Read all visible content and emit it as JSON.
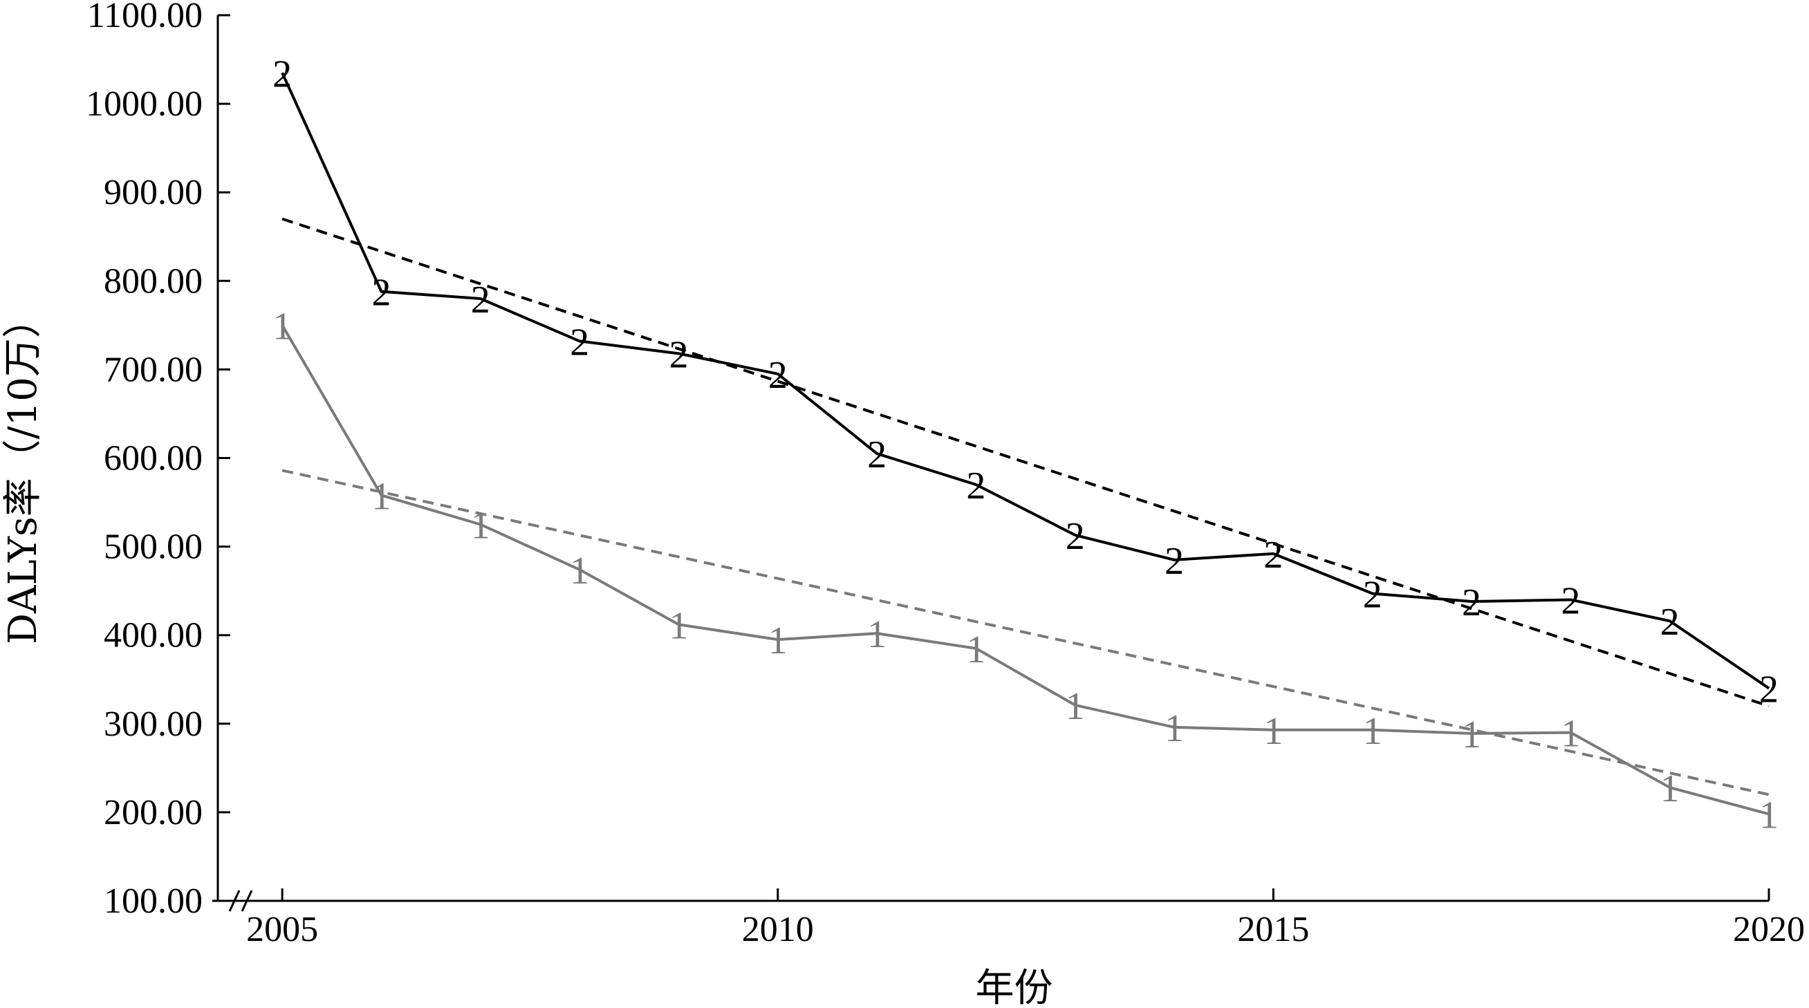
{
  "chart_data": {
    "type": "line",
    "xlabel": "年份",
    "ylabel": "DALYs率（/10万）",
    "x": [
      2005,
      2006,
      2007,
      2008,
      2009,
      2010,
      2011,
      2012,
      2013,
      2014,
      2015,
      2016,
      2017,
      2018,
      2019,
      2020
    ],
    "x_ticks": [
      "2005",
      "2010",
      "2015",
      "2020"
    ],
    "y_ticks": [
      "100.00",
      "200.00",
      "300.00",
      "400.00",
      "500.00",
      "600.00",
      "700.00",
      "800.00",
      "900.00",
      "1000.00",
      "1100.00"
    ],
    "xlim": [
      2004.35,
      2020
    ],
    "ylim": [
      100,
      1100
    ],
    "y_axis_break": true,
    "grid": false,
    "series": [
      {
        "marker": "2",
        "color": "#000000",
        "values": [
          1035,
          788,
          780,
          732,
          718,
          695,
          605,
          570,
          513,
          485,
          492,
          447,
          438,
          440,
          416,
          340
        ],
        "trend": {
          "style": "dashed",
          "start": 870,
          "end": 320
        }
      },
      {
        "marker": "1",
        "color": "#7a7a7a",
        "values": [
          750,
          558,
          525,
          474,
          412,
          395,
          402,
          385,
          321,
          296,
          293,
          293,
          289,
          290,
          228,
          198
        ],
        "trend": {
          "style": "dashed",
          "start": 586,
          "end": 220
        }
      }
    ]
  }
}
